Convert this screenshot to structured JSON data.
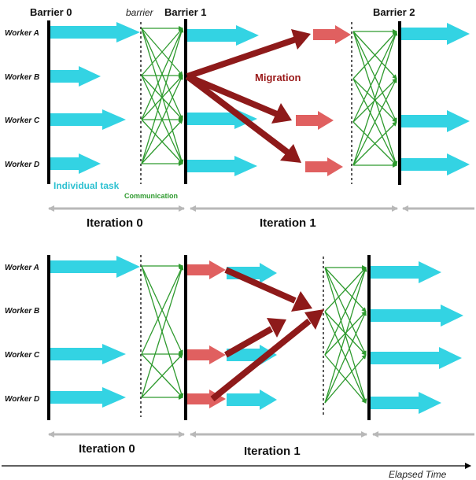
{
  "colors": {
    "task": "#33d3e3",
    "communication": "#2e9a2e",
    "migration": "#8e1a1a",
    "migrated_task": "#e06060",
    "iteration_arrow": "#b8b8b8",
    "barrier": "#000000"
  },
  "top": {
    "barriers": [
      "Barrier 0",
      "Barrier 1",
      "Barrier 2"
    ],
    "barrier_marker": "barrier",
    "workers": [
      "Worker A",
      "Worker B",
      "Worker C",
      "Worker D"
    ],
    "individual_task_label": "Individual task",
    "communication_label": "Communication",
    "migration_label": "Migration",
    "iterations": [
      "Iteration 0",
      "Iteration 1"
    ]
  },
  "bottom": {
    "workers": [
      "Worker A",
      "Worker B",
      "Worker C",
      "Worker D"
    ],
    "iterations": [
      "Iteration 0",
      "Iteration 1"
    ]
  },
  "timeline": {
    "label": "Elapsed Time"
  }
}
